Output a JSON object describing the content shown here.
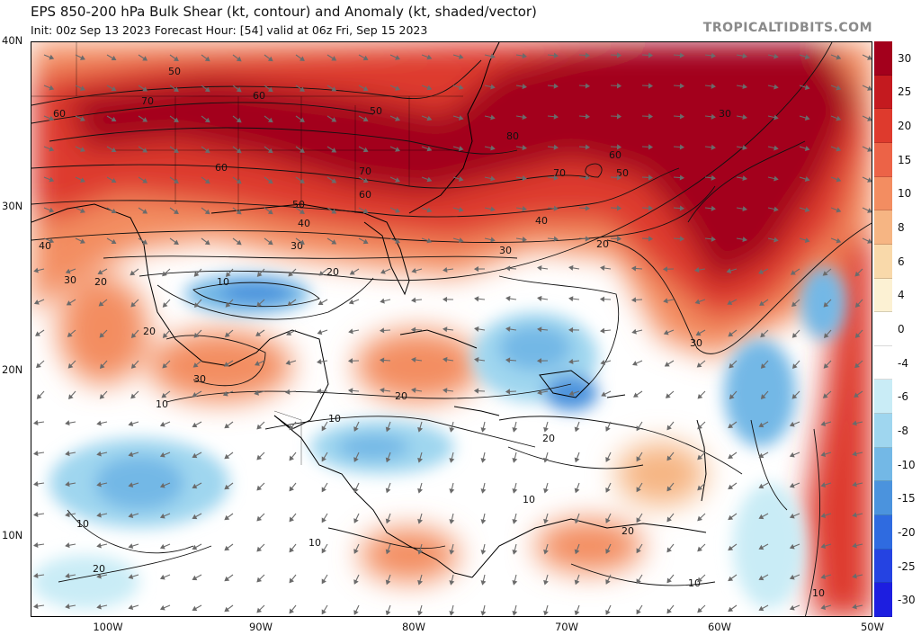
{
  "header": {
    "title": "EPS 850-200 hPa Bulk Shear (kt, contour) and Anomaly (kt, shaded/vector)",
    "subtitle": "Init: 00z Sep 13 2023   Forecast Hour: [54]   valid at 06z Fri, Sep 15 2023",
    "credit": "TROPICALTIDBITS.COM"
  },
  "axes": {
    "lat_labels": [
      "40N",
      "30N",
      "20N",
      "10N"
    ],
    "lon_labels": [
      "100W",
      "90W",
      "80W",
      "70W",
      "60W",
      "50W"
    ]
  },
  "contour_labels": [
    "50",
    "60",
    "70",
    "60",
    "50",
    "80",
    "60",
    "70",
    "50",
    "30",
    "60",
    "70",
    "60",
    "50",
    "40",
    "40",
    "30",
    "30",
    "20",
    "20",
    "10",
    "40",
    "30",
    "20",
    "20",
    "30",
    "20",
    "10",
    "10",
    "20",
    "10",
    "10",
    "20",
    "10",
    "10",
    "30",
    "20",
    "10"
  ],
  "colorbar": {
    "labels": [
      "30",
      "25",
      "20",
      "15",
      "10",
      "8",
      "6",
      "4",
      "0",
      "-4",
      "-6",
      "-8",
      "-10",
      "-15",
      "-20",
      "-25",
      "-30"
    ],
    "colors": [
      "#a3001c",
      "#c41a1f",
      "#de3a2d",
      "#ec6347",
      "#f38d61",
      "#f6b583",
      "#f9d9aa",
      "#fcf1d3",
      "#ffffff",
      "#ffffff",
      "#c9ecf6",
      "#9fd6ef",
      "#73b8e6",
      "#4b93dd",
      "#2f6be0",
      "#2543e2",
      "#1d1ee0"
    ]
  },
  "colors": {
    "coast": "#000000",
    "contour": "#111111",
    "vector": "#6b6b6b"
  }
}
